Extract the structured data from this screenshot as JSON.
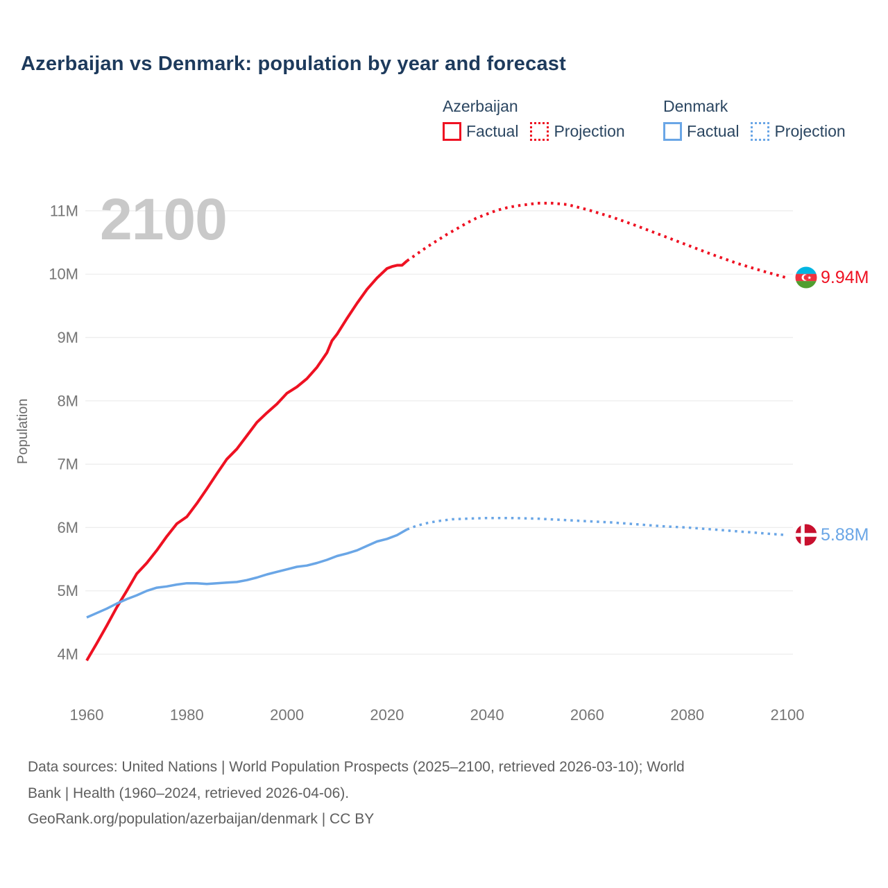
{
  "title": "Azerbaijan vs Denmark: population by year and forecast",
  "colors": {
    "azerbaijan": "#ee1122",
    "denmark": "#6aa6e6",
    "title_text": "#1d3a5c",
    "tick_text": "#757575",
    "gridline": "#ececec",
    "watermark": "#c9c9c9"
  },
  "legend": {
    "groups": [
      {
        "name": "Azerbaijan",
        "color": "#ee1122",
        "items": [
          {
            "label": "Factual",
            "style": "solid"
          },
          {
            "label": "Projection",
            "style": "dotted"
          }
        ]
      },
      {
        "name": "Denmark",
        "color": "#6aa6e6",
        "items": [
          {
            "label": "Factual",
            "style": "solid"
          },
          {
            "label": "Projection",
            "style": "dotted"
          }
        ]
      }
    ]
  },
  "chart_data": {
    "type": "line",
    "title": "Azerbaijan vs Denmark: population by year and forecast",
    "xlabel": "",
    "ylabel": "Population",
    "watermark": "2100",
    "xlim": [
      1960,
      2100
    ],
    "ylim": [
      3.85,
      11.25
    ],
    "grid": "horizontal-only",
    "legend_position": "top-right",
    "x_ticks": [
      1960,
      1980,
      2000,
      2020,
      2040,
      2060,
      2080,
      2100
    ],
    "x_tick_labels": [
      "1960",
      "1980",
      "2000",
      "2020",
      "2040",
      "2060",
      "2080",
      "2100"
    ],
    "y_ticks": [
      4,
      5,
      6,
      7,
      8,
      9,
      10,
      11
    ],
    "y_tick_labels": [
      "4M",
      "5M",
      "6M",
      "7M",
      "8M",
      "9M",
      "10M",
      "11M"
    ],
    "series": [
      {
        "name": "Azerbaijan Factual",
        "country": "Azerbaijan",
        "kind": "factual",
        "style": "solid",
        "color": "#ee1122",
        "x": [
          1960,
          1962,
          1964,
          1966,
          1968,
          1970,
          1972,
          1974,
          1976,
          1978,
          1980,
          1982,
          1984,
          1986,
          1988,
          1990,
          1992,
          1994,
          1996,
          1998,
          2000,
          2002,
          2004,
          2006,
          2008,
          2009,
          2010,
          2012,
          2014,
          2016,
          2018,
          2020,
          2021,
          2022,
          2023,
          2024
        ],
        "values": [
          3.9,
          4.17,
          4.45,
          4.74,
          5.0,
          5.27,
          5.44,
          5.64,
          5.86,
          6.06,
          6.17,
          6.38,
          6.61,
          6.85,
          7.08,
          7.24,
          7.45,
          7.66,
          7.81,
          7.95,
          8.12,
          8.22,
          8.35,
          8.53,
          8.76,
          8.95,
          9.05,
          9.3,
          9.54,
          9.76,
          9.94,
          10.09,
          10.12,
          10.14,
          10.14,
          10.21
        ]
      },
      {
        "name": "Azerbaijan Projection",
        "country": "Azerbaijan",
        "kind": "projection",
        "style": "dotted",
        "color": "#ee1122",
        "x": [
          2024,
          2026,
          2028,
          2030,
          2032,
          2034,
          2036,
          2038,
          2040,
          2042,
          2044,
          2046,
          2048,
          2050,
          2053,
          2056,
          2060,
          2065,
          2070,
          2075,
          2080,
          2085,
          2090,
          2095,
          2100
        ],
        "values": [
          10.21,
          10.32,
          10.43,
          10.53,
          10.63,
          10.72,
          10.81,
          10.89,
          10.95,
          11.01,
          11.05,
          11.08,
          11.1,
          11.12,
          11.12,
          11.1,
          11.02,
          10.9,
          10.76,
          10.61,
          10.46,
          10.31,
          10.17,
          10.05,
          9.94
        ]
      },
      {
        "name": "Denmark Factual",
        "country": "Denmark",
        "kind": "factual",
        "style": "solid",
        "color": "#6aa6e6",
        "x": [
          1960,
          1962,
          1964,
          1966,
          1968,
          1970,
          1972,
          1974,
          1976,
          1978,
          1980,
          1982,
          1984,
          1986,
          1988,
          1990,
          1992,
          1994,
          1996,
          1998,
          2000,
          2002,
          2004,
          2006,
          2008,
          2010,
          2012,
          2014,
          2016,
          2018,
          2020,
          2022,
          2024
        ],
        "values": [
          4.58,
          4.65,
          4.72,
          4.8,
          4.87,
          4.93,
          5.0,
          5.05,
          5.07,
          5.1,
          5.12,
          5.12,
          5.11,
          5.12,
          5.13,
          5.14,
          5.17,
          5.21,
          5.26,
          5.3,
          5.34,
          5.38,
          5.4,
          5.44,
          5.49,
          5.55,
          5.59,
          5.64,
          5.71,
          5.78,
          5.82,
          5.88,
          5.97
        ]
      },
      {
        "name": "Denmark Projection",
        "country": "Denmark",
        "kind": "projection",
        "style": "dotted",
        "color": "#6aa6e6",
        "x": [
          2024,
          2026,
          2028,
          2030,
          2033,
          2036,
          2040,
          2045,
          2050,
          2055,
          2060,
          2065,
          2070,
          2075,
          2080,
          2085,
          2090,
          2095,
          2100
        ],
        "values": [
          5.97,
          6.03,
          6.07,
          6.1,
          6.13,
          6.14,
          6.15,
          6.15,
          6.14,
          6.12,
          6.1,
          6.08,
          6.05,
          6.02,
          6.0,
          5.97,
          5.94,
          5.91,
          5.88
        ]
      }
    ],
    "end_labels": [
      {
        "country": "Azerbaijan",
        "text": "9.94M",
        "value": 9.94,
        "year": 2100,
        "flag": "azerbaijan-flag",
        "color": "#ee1122"
      },
      {
        "country": "Denmark",
        "text": "5.88M",
        "value": 5.88,
        "year": 2100,
        "flag": "denmark-flag",
        "color": "#6aa6e6"
      }
    ]
  },
  "footer": {
    "line1": "Data sources: United Nations | World Population Prospects (2025–2100, retrieved 2026-03-10); World",
    "line2": "Bank | Health (1960–2024, retrieved 2026-04-06).",
    "line3": "GeoRank.org/population/azerbaijan/denmark | CC BY"
  }
}
